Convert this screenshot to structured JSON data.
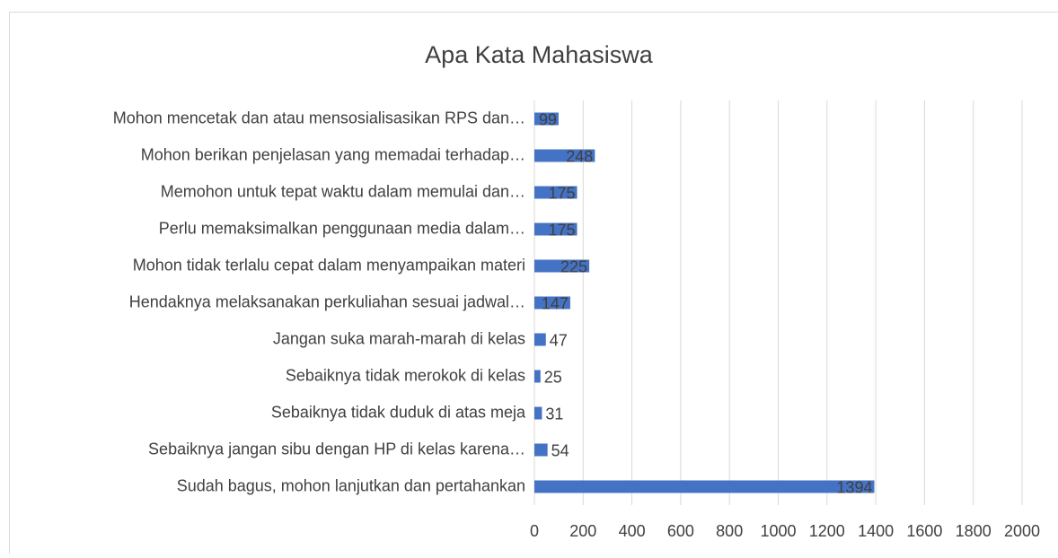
{
  "chart_data": {
    "type": "bar",
    "orientation": "horizontal",
    "title": "Apa Kata Mahasiswa",
    "categories": [
      "Mohon mencetak dan atau mensosialisasikan RPS dan…",
      "Mohon berikan penjelasan yang memadai terhadap…",
      "Memohon untuk tepat waktu dalam memulai dan…",
      "Perlu memaksimalkan penggunaan media dalam…",
      "Mohon tidak terlalu cepat dalam menyampaikan materi",
      "Hendaknya melaksanakan perkuliahan sesuai jadwal…",
      "Jangan suka marah-marah di kelas",
      "Sebaiknya tidak merokok di kelas",
      "Sebaiknya tidak duduk di atas meja",
      "Sebaiknya jangan sibu dengan HP di kelas karena…",
      "Sudah bagus, mohon lanjutkan dan pertahankan"
    ],
    "values": [
      99,
      248,
      175,
      175,
      225,
      147,
      47,
      25,
      31,
      54,
      1394
    ],
    "color": "#4472c4",
    "xlim": [
      0,
      2000
    ],
    "xticks": [
      0,
      200,
      400,
      600,
      800,
      1000,
      1200,
      1400,
      1600,
      1800,
      2000
    ],
    "grid": true
  }
}
